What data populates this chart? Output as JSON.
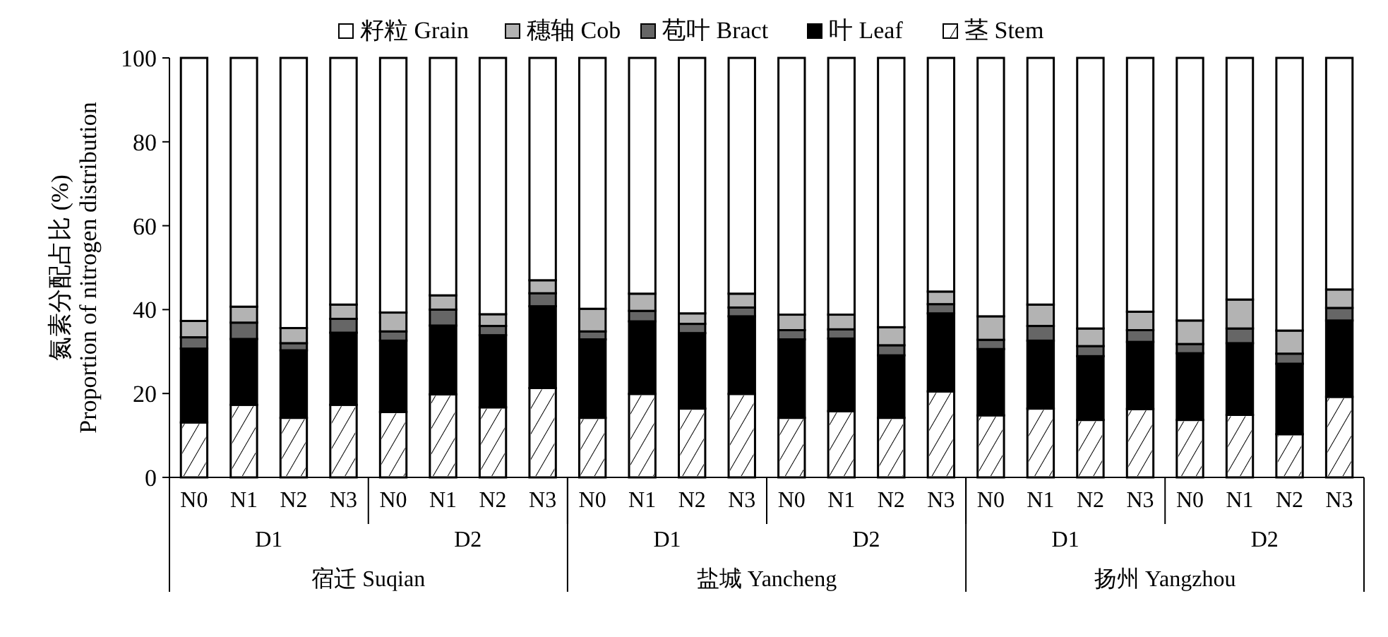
{
  "chart_data": {
    "type": "bar",
    "stacked": true,
    "ylabel": "氮素分配占比 (%)\nProportion of nitrogen distribution",
    "categories": [
      "N0",
      "N1",
      "N2",
      "N3",
      "N0",
      "N1",
      "N2",
      "N3",
      "N0",
      "N1",
      "N2",
      "N3",
      "N0",
      "N1",
      "N2",
      "N3",
      "N0",
      "N1",
      "N2",
      "N3",
      "N0",
      "N1",
      "N2",
      "N3"
    ],
    "annotations": [
      "D1",
      "D2",
      "D1",
      "D2",
      "D1",
      "D2",
      "宿迁 Suqian",
      "盐城 Yancheng",
      "扬州 Yangzhou"
    ],
    "ylim": [
      0,
      100
    ],
    "yticks": [
      0,
      20,
      40,
      60,
      80,
      100
    ],
    "legend": "top",
    "grid": false,
    "series": [
      {
        "name": "茎 Stem",
        "color": "#ffffff",
        "values": [
          13.1,
          17.3,
          14.2,
          17.3,
          15.6,
          19.8,
          16.7,
          21.3,
          14.2,
          19.9,
          16.4,
          19.9,
          14.2,
          15.8,
          14.2,
          20.5,
          14.8,
          16.4,
          13.7,
          16.3,
          13.7,
          14.9,
          10.3,
          19.2
        ]
      },
      {
        "name": "叶 Leaf",
        "color": "#000000",
        "values": [
          17.6,
          15.7,
          16.1,
          17.2,
          17.0,
          16.4,
          17.2,
          19.5,
          18.7,
          17.3,
          18.0,
          18.5,
          18.7,
          17.3,
          14.9,
          18.6,
          15.8,
          16.2,
          15.2,
          16.0,
          15.9,
          17.1,
          16.8,
          18.2
        ]
      },
      {
        "name": "苞叶 Bract",
        "color": "#666666",
        "values": [
          2.7,
          3.9,
          1.7,
          3.3,
          2.2,
          3.8,
          2.2,
          3.1,
          1.9,
          2.5,
          2.2,
          2.1,
          2.2,
          2.2,
          2.4,
          2.2,
          2.2,
          3.5,
          2.4,
          2.8,
          2.2,
          3.5,
          2.4,
          3.0
        ]
      },
      {
        "name": "穗轴 Cob",
        "color": "#b3b3b3",
        "values": [
          3.9,
          3.8,
          3.6,
          3.4,
          4.5,
          3.4,
          2.8,
          3.1,
          5.4,
          4.1,
          2.5,
          3.3,
          3.7,
          3.5,
          4.3,
          3.0,
          5.6,
          5.1,
          4.2,
          4.4,
          5.6,
          6.9,
          5.5,
          4.4
        ]
      },
      {
        "name": "籽粒 Grain",
        "color": "#ffffff",
        "values": [
          62.7,
          59.3,
          64.4,
          58.8,
          60.7,
          56.6,
          61.1,
          53.0,
          59.8,
          56.2,
          60.9,
          56.2,
          61.2,
          61.2,
          64.2,
          55.7,
          61.6,
          58.8,
          64.5,
          60.5,
          62.6,
          57.6,
          65.0,
          55.2
        ]
      }
    ]
  }
}
